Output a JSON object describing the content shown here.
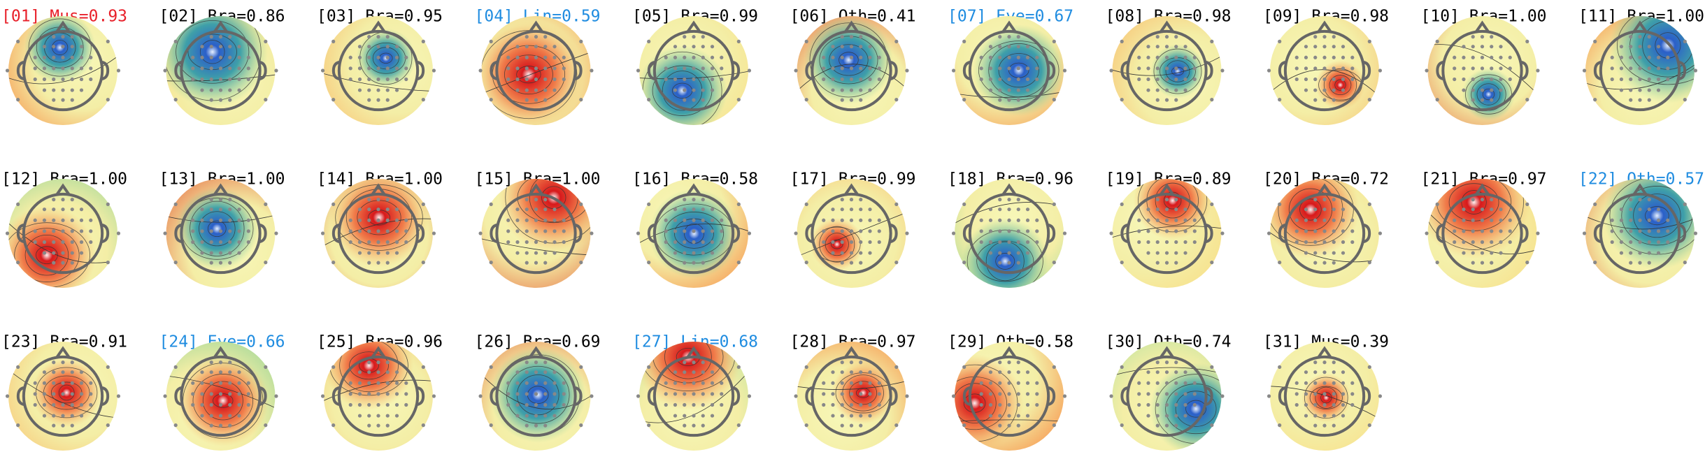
{
  "components": [
    {
      "title": "[01] Mus=0.93",
      "color": "#e8202a"
    },
    {
      "title": "[02] Bra=0.86",
      "color": "#000000"
    },
    {
      "title": "[03] Bra=0.95",
      "color": "#000000"
    },
    {
      "title": "[04] Lin=0.59",
      "color": "#1f8ce0"
    },
    {
      "title": "[05] Bra=0.99",
      "color": "#000000"
    },
    {
      "title": "[06] Oth=0.41",
      "color": "#000000"
    },
    {
      "title": "[07] Eye=0.67",
      "color": "#1f8ce0"
    },
    {
      "title": "[08] Bra=0.98",
      "color": "#000000"
    },
    {
      "title": "[09] Bra=0.98",
      "color": "#000000"
    },
    {
      "title": "[10] Bra=1.00",
      "color": "#000000"
    },
    {
      "title": "[11] Bra=1.00",
      "color": "#000000"
    },
    {
      "title": "[12] Bra=1.00",
      "color": "#000000"
    },
    {
      "title": "[13] Bra=1.00",
      "color": "#000000"
    },
    {
      "title": "[14] Bra=1.00",
      "color": "#000000"
    },
    {
      "title": "[15] Bra=1.00",
      "color": "#000000"
    },
    {
      "title": "[16] Bra=0.58",
      "color": "#000000"
    },
    {
      "title": "[17] Bra=0.99",
      "color": "#000000"
    },
    {
      "title": "[18] Bra=0.96",
      "color": "#000000"
    },
    {
      "title": "[19] Bra=0.89",
      "color": "#000000"
    },
    {
      "title": "[20] Bra=0.72",
      "color": "#000000"
    },
    {
      "title": "[21] Bra=0.97",
      "color": "#000000"
    },
    {
      "title": "[22] Oth=0.57",
      "color": "#1f8ce0"
    },
    {
      "title": "[23] Bra=0.91",
      "color": "#000000"
    },
    {
      "title": "[24] Eye=0.66",
      "color": "#1f8ce0"
    },
    {
      "title": "[25] Bra=0.96",
      "color": "#000000"
    },
    {
      "title": "[26] Bra=0.69",
      "color": "#000000"
    },
    {
      "title": "[27] Lin=0.68",
      "color": "#1f8ce0"
    },
    {
      "title": "[28] Bra=0.97",
      "color": "#000000"
    },
    {
      "title": "[29] Oth=0.58",
      "color": "#000000"
    },
    {
      "title": "[30] Oth=0.74",
      "color": "#000000"
    },
    {
      "title": "[31] Mus=0.39",
      "color": "#000000"
    }
  ]
}
